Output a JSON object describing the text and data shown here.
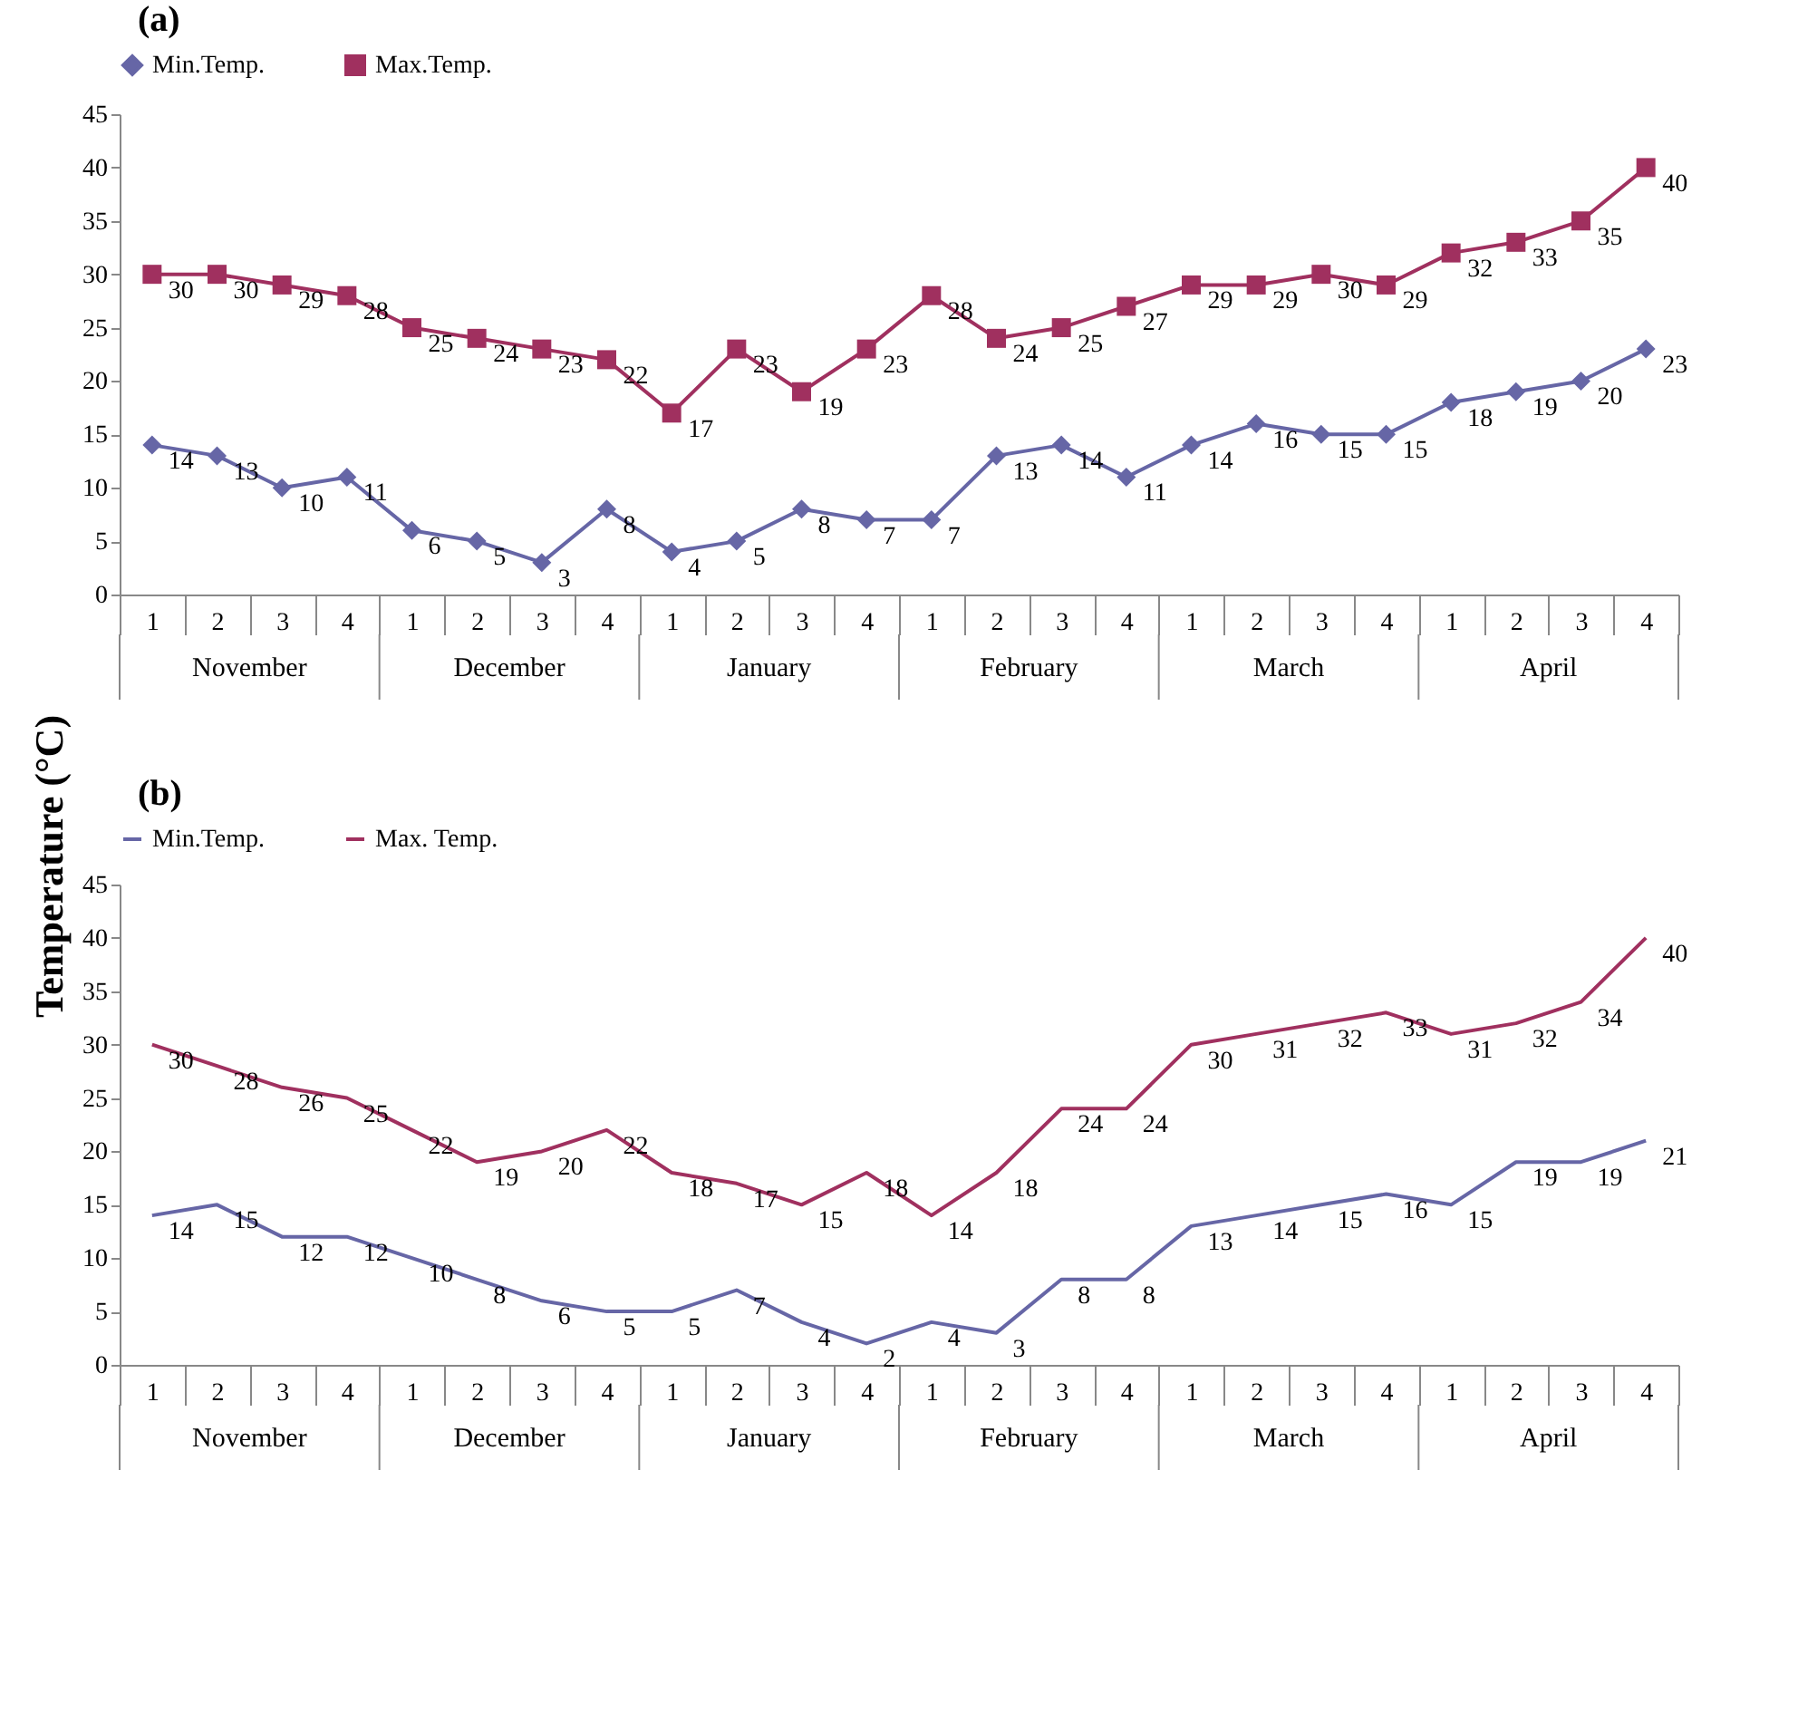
{
  "chart_data": [
    {
      "type": "line",
      "title": "(a)",
      "ylabel": "Temperature (°C)",
      "categories": [
        "1",
        "2",
        "3",
        "4",
        "1",
        "2",
        "3",
        "4",
        "1",
        "2",
        "3",
        "4",
        "1",
        "2",
        "3",
        "4",
        "1",
        "2",
        "3",
        "4",
        "1",
        "2",
        "3",
        "4"
      ],
      "annotations": [
        "November",
        "December",
        "January",
        "February",
        "March",
        "April"
      ],
      "series": [
        {
          "name": "Min.Temp.",
          "color": "#6666a6",
          "marker": "diamond",
          "values": [
            14,
            13,
            10,
            11,
            6,
            5,
            3,
            8,
            4,
            5,
            8,
            7,
            7,
            13,
            14,
            11,
            14,
            16,
            15,
            15,
            18,
            19,
            20,
            23
          ]
        },
        {
          "name": "Max.Temp.",
          "color": "#a0305f",
          "marker": "square",
          "values": [
            30,
            30,
            29,
            28,
            25,
            24,
            23,
            22,
            17,
            23,
            19,
            23,
            28,
            24,
            25,
            27,
            29,
            29,
            30,
            29,
            32,
            33,
            35,
            40
          ]
        }
      ],
      "ylim": [
        0,
        45
      ],
      "yticks": [
        0,
        5,
        10,
        15,
        20,
        25,
        30,
        35,
        40,
        45
      ],
      "grid": false,
      "legend": "top",
      "data_labels": true
    },
    {
      "type": "line",
      "title": "(b)",
      "categories": [
        "1",
        "2",
        "3",
        "4",
        "1",
        "2",
        "3",
        "4",
        "1",
        "2",
        "3",
        "4",
        "1",
        "2",
        "3",
        "4",
        "1",
        "2",
        "3",
        "4",
        "1",
        "2",
        "3",
        "4"
      ],
      "annotations": [
        "November",
        "December",
        "January",
        "February",
        "March",
        "April"
      ],
      "series": [
        {
          "name": "Min.Temp.",
          "color": "#6666a6",
          "values": [
            14,
            15,
            12,
            12,
            10,
            8,
            6,
            5,
            5,
            7,
            4,
            2,
            4,
            3,
            8,
            8,
            13,
            14,
            15,
            16,
            15,
            19,
            19,
            21
          ]
        },
        {
          "name": "Max. Temp.",
          "color": "#a0305f",
          "values": [
            30,
            28,
            26,
            25,
            22,
            19,
            20,
            22,
            18,
            17,
            15,
            18,
            14,
            18,
            24,
            24,
            30,
            31,
            32,
            33,
            31,
            32,
            34,
            40
          ]
        }
      ],
      "ylim": [
        0,
        45
      ],
      "yticks": [
        0,
        5,
        10,
        15,
        20,
        25,
        30,
        35,
        40,
        45
      ],
      "grid": false,
      "legend": "top",
      "marker": "none",
      "data_labels": true
    }
  ]
}
